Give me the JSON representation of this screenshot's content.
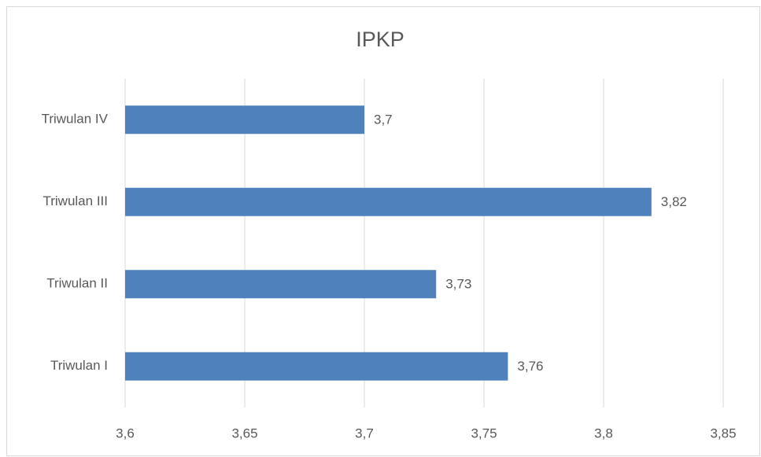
{
  "chart_data": {
    "type": "barh",
    "title": "IPKP",
    "categories": [
      "Triwulan I",
      "Triwulan II",
      "Triwulan III",
      "Triwulan IV"
    ],
    "values": [
      3.76,
      3.73,
      3.82,
      3.7
    ],
    "value_labels": [
      "3,76",
      "3,73",
      "3,82",
      "3,7"
    ],
    "color": "#4f81bd",
    "xlim": [
      3.6,
      3.85
    ],
    "xticks": [
      {
        "value": 3.6,
        "label": "3,6"
      },
      {
        "value": 3.65,
        "label": "3,65"
      },
      {
        "value": 3.7,
        "label": "3,7"
      },
      {
        "value": 3.75,
        "label": "3,75"
      },
      {
        "value": 3.8,
        "label": "3,8"
      },
      {
        "value": 3.85,
        "label": "3,85"
      }
    ],
    "grid": true
  }
}
